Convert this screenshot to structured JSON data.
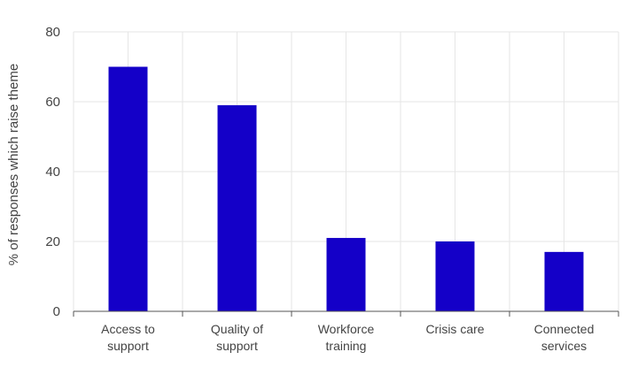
{
  "chart_data": {
    "type": "bar",
    "categories": [
      [
        "Access to",
        "support"
      ],
      [
        "Quality of",
        "support"
      ],
      [
        "Workforce",
        "training"
      ],
      [
        "Crisis care"
      ],
      [
        "Connected",
        "services"
      ]
    ],
    "values": [
      70,
      59,
      21,
      20,
      17
    ],
    "title": "",
    "xlabel": "",
    "ylabel": "% of responses which raise theme",
    "ylim": [
      0,
      80
    ],
    "yticks": [
      0,
      20,
      40,
      60,
      80
    ],
    "grid": true,
    "legend": "none",
    "colors": {
      "bar": "#1400c8",
      "grid": "#e6e6e6",
      "axis": "#555555",
      "text": "#444444"
    }
  }
}
